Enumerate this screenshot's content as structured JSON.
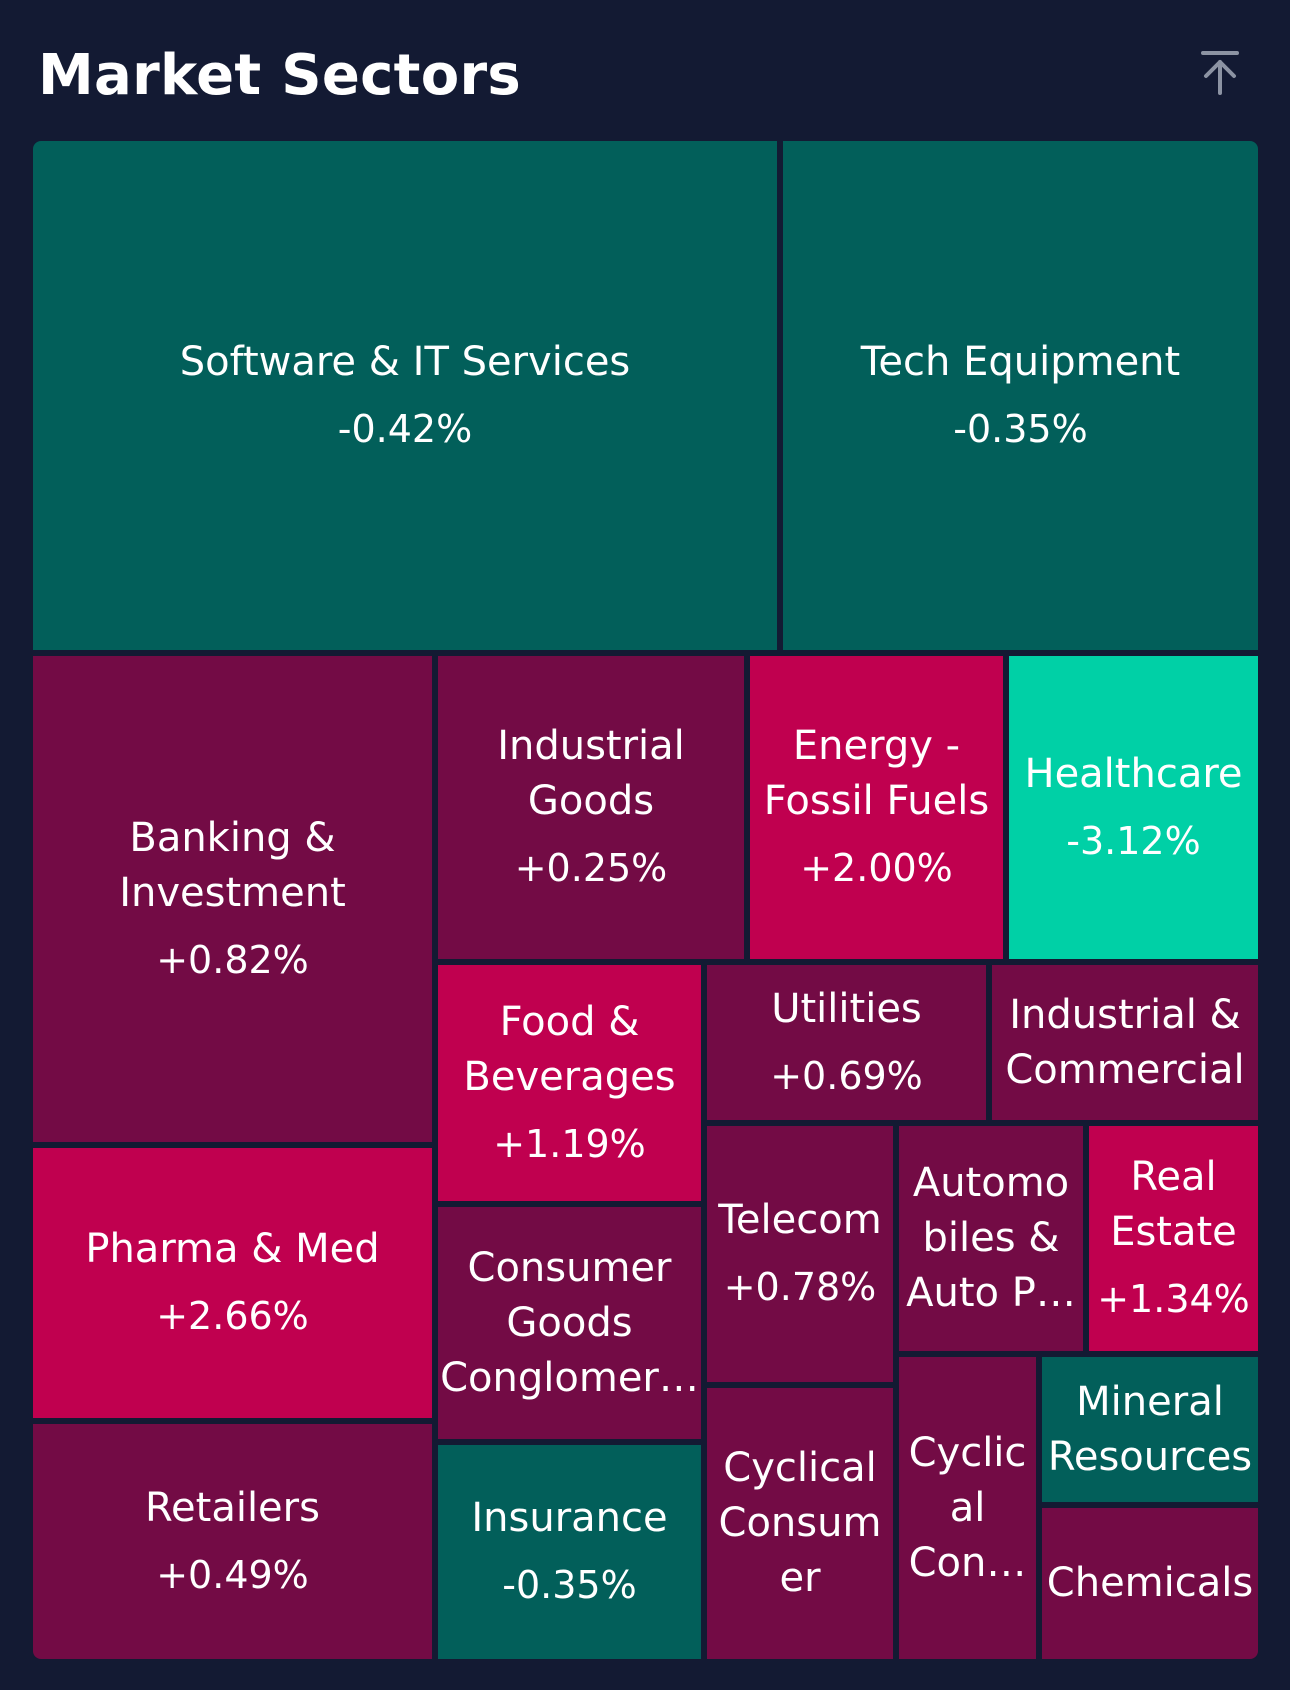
{
  "header": {
    "title": "Market Sectors",
    "collapse_icon": "arrow-up-to-line-icon"
  },
  "colors": {
    "background": "#131a33",
    "negative_dark": "#025f5a",
    "negative_strong": "#00d0a6",
    "positive_dark": "#730b45",
    "positive_strong": "#c0004f"
  },
  "sectors": {
    "software": {
      "name": "Software & IT Services",
      "change": "-0.42%"
    },
    "tech_equipment": {
      "name": "Tech Equipment",
      "change": "-0.35%"
    },
    "banking": {
      "name": "Banking &\nInvestment",
      "change": "+0.82%"
    },
    "industrial_goods": {
      "name": "Industrial\nGoods",
      "change": "+0.25%"
    },
    "energy": {
      "name": "Energy -\nFossil Fuels",
      "change": "+2.00%"
    },
    "healthcare": {
      "name": "Healthcare",
      "change": "-3.12%"
    },
    "food": {
      "name": "Food &\nBeverages",
      "change": "+1.19%"
    },
    "utilities": {
      "name": "Utilities",
      "change": "+0.69%"
    },
    "industrial_commercial": {
      "name": "Industrial &\nCommercial",
      "change": ""
    },
    "pharma": {
      "name": "Pharma & Med",
      "change": "+2.66%"
    },
    "consumer_goods": {
      "name": "Consumer\nGoods\nConglomer…",
      "change": ""
    },
    "telecom": {
      "name": "Telecom",
      "change": "+0.78%"
    },
    "automobiles": {
      "name": "Automo\nbiles &\nAuto P…",
      "change": ""
    },
    "real_estate": {
      "name": "Real\nEstate",
      "change": "+1.34%"
    },
    "retailers": {
      "name": "Retailers",
      "change": "+0.49%"
    },
    "insurance": {
      "name": "Insurance",
      "change": "-0.35%"
    },
    "cyclical_consumer": {
      "name": "Cyclical\nConsum\ner",
      "change": ""
    },
    "cyclical_con": {
      "name": "Cyclic\nal\nCon…",
      "change": ""
    },
    "mineral": {
      "name": "Mineral\nResources",
      "change": ""
    },
    "chemicals": {
      "name": "Chemicals",
      "change": ""
    }
  }
}
